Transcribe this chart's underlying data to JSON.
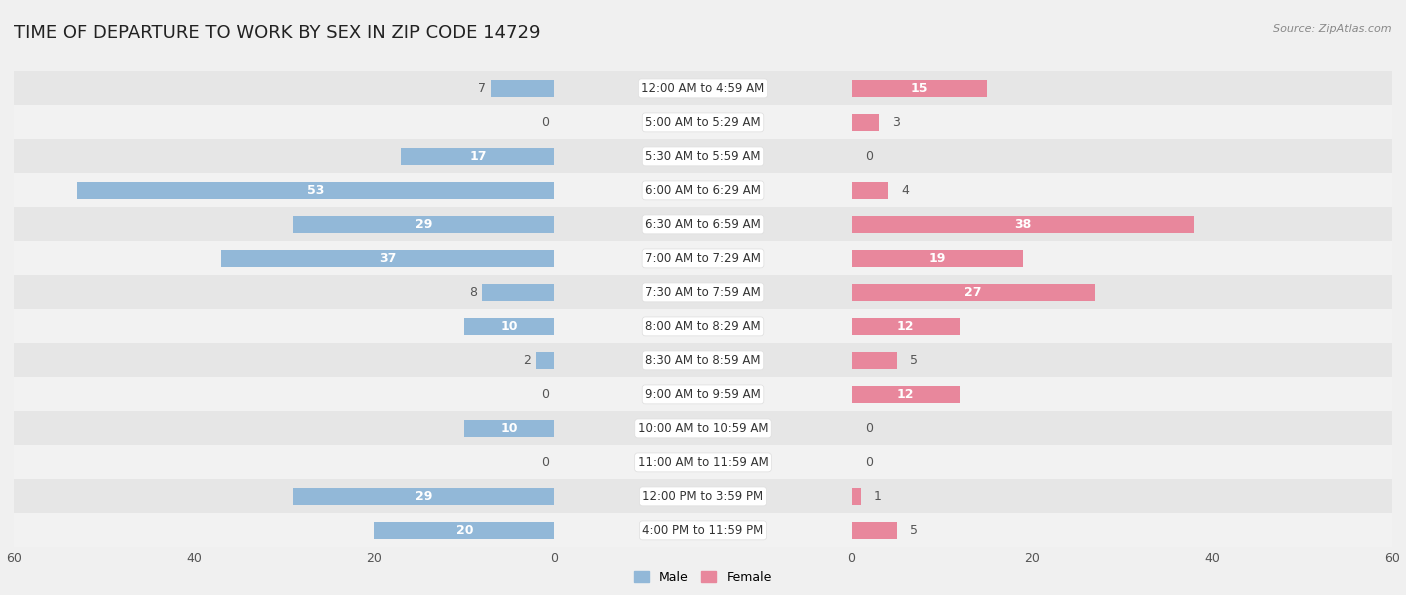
{
  "title": "TIME OF DEPARTURE TO WORK BY SEX IN ZIP CODE 14729",
  "source": "Source: ZipAtlas.com",
  "categories": [
    "12:00 AM to 4:59 AM",
    "5:00 AM to 5:29 AM",
    "5:30 AM to 5:59 AM",
    "6:00 AM to 6:29 AM",
    "6:30 AM to 6:59 AM",
    "7:00 AM to 7:29 AM",
    "7:30 AM to 7:59 AM",
    "8:00 AM to 8:29 AM",
    "8:30 AM to 8:59 AM",
    "9:00 AM to 9:59 AM",
    "10:00 AM to 10:59 AM",
    "11:00 AM to 11:59 AM",
    "12:00 PM to 3:59 PM",
    "4:00 PM to 11:59 PM"
  ],
  "male": [
    7,
    0,
    17,
    53,
    29,
    37,
    8,
    10,
    2,
    0,
    10,
    0,
    29,
    20
  ],
  "female": [
    15,
    3,
    0,
    4,
    38,
    19,
    27,
    12,
    5,
    12,
    0,
    0,
    1,
    5
  ],
  "male_color": "#92b8d8",
  "female_color": "#e8879c",
  "background_color": "#f0f0f0",
  "row_bg_light": "#f2f2f2",
  "row_bg_dark": "#e6e6e6",
  "xlim": 60,
  "bar_height": 0.52,
  "title_fontsize": 13,
  "label_fontsize": 9,
  "tick_fontsize": 9,
  "category_fontsize": 8.5,
  "inside_threshold": 10
}
